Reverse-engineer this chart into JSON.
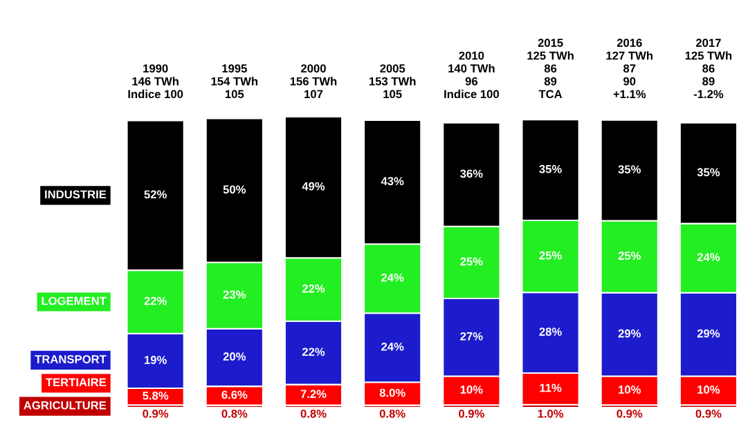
{
  "chart_data": {
    "type": "bar",
    "categories": [
      "1990\n146 TWh\nIndice 100",
      "1995\n154 TWh\n105",
      "2000\n156 TWh\n107",
      "2005\n153 TWh\n105",
      "2010\n140 TWh\n96\nIndice 100",
      "2015\n125 TWh\n86\n89\nTCA",
      "2016\n127 TWh\n87\n90\n+1.1%",
      "2017\n125 TWh\n86\n89\n-1.2%"
    ],
    "stacked": true,
    "series": [
      {
        "name": "AGRICULTURE",
        "color": "#c00000",
        "values": [
          0.9,
          0.8,
          0.8,
          0.8,
          0.9,
          1.0,
          0.9,
          0.9
        ],
        "value_labels": [
          "0.9%",
          "0.8%",
          "0.8%",
          "0.8%",
          "0.9%",
          "1.0%",
          "0.9%",
          "0.9%"
        ]
      },
      {
        "name": "TERTIAIRE",
        "color": "#ff0000",
        "values": [
          5.8,
          6.6,
          7.2,
          8.0,
          10,
          11,
          10,
          10
        ],
        "value_labels": [
          "5.8%",
          "6.6%",
          "7.2%",
          "8.0%",
          "10%",
          "11%",
          "10%",
          "10%"
        ]
      },
      {
        "name": "TRANSPORT",
        "color": "#1c1ccc",
        "values": [
          19,
          20,
          22,
          24,
          27,
          28,
          29,
          29
        ],
        "value_labels": [
          "19%",
          "20%",
          "22%",
          "24%",
          "27%",
          "28%",
          "29%",
          "29%"
        ]
      },
      {
        "name": "LOGEMENT",
        "color": "#22ee22",
        "values": [
          22,
          23,
          22,
          24,
          25,
          25,
          25,
          24
        ],
        "value_labels": [
          "22%",
          "23%",
          "22%",
          "24%",
          "25%",
          "25%",
          "25%",
          "24%"
        ]
      },
      {
        "name": "INDUSTRIE",
        "color": "#000000",
        "values": [
          52,
          50,
          49,
          43,
          36,
          35,
          35,
          35
        ],
        "value_labels": [
          "52%",
          "50%",
          "49%",
          "43%",
          "36%",
          "35%",
          "35%",
          "35%"
        ]
      }
    ]
  }
}
